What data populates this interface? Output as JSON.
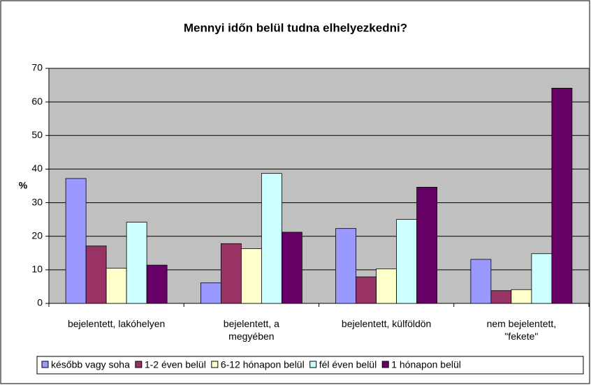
{
  "chart_data": {
    "type": "bar",
    "title": "Mennyi időn belül tudna elhelyezkedni?",
    "y_label": "%",
    "categories": [
      "bejelentett, lakóhelyen",
      "bejelentett, a\nmegyében",
      "bejelentett, külföldön",
      "nem bejelentett,\n\"fekete\""
    ],
    "series": [
      {
        "name": "később vagy soha",
        "color": "#9999ff",
        "values": [
          37.2,
          6.1,
          22.3,
          13.1
        ]
      },
      {
        "name": "1-2 éven belül",
        "color": "#993366",
        "values": [
          17.1,
          17.8,
          7.9,
          3.8
        ]
      },
      {
        "name": "6-12 hónapon belül",
        "color": "#ffffcc",
        "values": [
          10.5,
          16.3,
          10.3,
          4.1
        ]
      },
      {
        "name": "fél éven belül",
        "color": "#ccffff",
        "values": [
          24.2,
          38.7,
          25.0,
          14.8
        ]
      },
      {
        "name": "1 hónapon belül",
        "color": "#660066",
        "values": [
          11.4,
          21.2,
          34.6,
          64.1
        ]
      }
    ],
    "ylim": [
      0,
      70
    ],
    "yticks": [
      0,
      10,
      20,
      30,
      40,
      50,
      60,
      70
    ],
    "grid": true,
    "legend": "bottom"
  }
}
